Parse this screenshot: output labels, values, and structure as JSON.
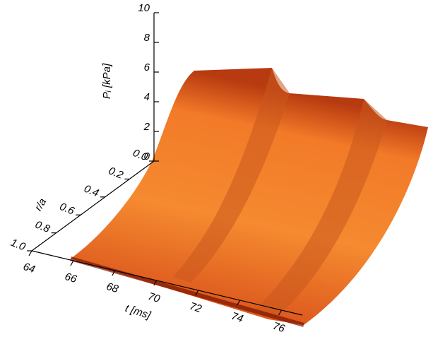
{
  "chart_data": {
    "type": "surface3d",
    "xlabel": "t [ms]",
    "ylabel": "r/a",
    "zlabel": "Pᵢ [kPa]",
    "xlim": [
      64,
      77
    ],
    "xticks": [
      64,
      66,
      68,
      70,
      72,
      74,
      76
    ],
    "ylim": [
      0,
      1
    ],
    "yticks": [
      {
        "value": 0,
        "label": "0.0"
      },
      0.2,
      0.4,
      0.6,
      0.8,
      {
        "value": 1,
        "label": "1.0"
      }
    ],
    "zlim": [
      0,
      10
    ],
    "zticks": [
      0,
      2,
      4,
      6,
      8,
      10
    ],
    "color": "#e8731e"
  }
}
